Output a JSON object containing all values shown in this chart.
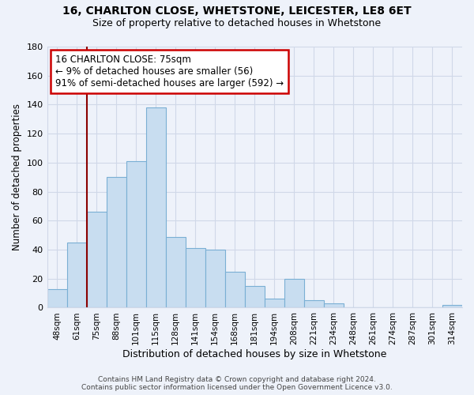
{
  "title1": "16, CHARLTON CLOSE, WHETSTONE, LEICESTER, LE8 6ET",
  "title2": "Size of property relative to detached houses in Whetstone",
  "xlabel": "Distribution of detached houses by size in Whetstone",
  "ylabel": "Number of detached properties",
  "bar_labels": [
    "48sqm",
    "61sqm",
    "75sqm",
    "88sqm",
    "101sqm",
    "115sqm",
    "128sqm",
    "141sqm",
    "154sqm",
    "168sqm",
    "181sqm",
    "194sqm",
    "208sqm",
    "221sqm",
    "234sqm",
    "248sqm",
    "261sqm",
    "274sqm",
    "287sqm",
    "301sqm",
    "314sqm"
  ],
  "bar_values": [
    13,
    45,
    66,
    90,
    101,
    138,
    49,
    41,
    40,
    25,
    15,
    6,
    20,
    5,
    3,
    0,
    0,
    0,
    0,
    0,
    2
  ],
  "bar_color": "#c8ddf0",
  "bar_edge_color": "#7aafd4",
  "ylim": [
    0,
    180
  ],
  "yticks": [
    0,
    20,
    40,
    60,
    80,
    100,
    120,
    140,
    160,
    180
  ],
  "vline_x_index": 2,
  "vline_color": "#8b0000",
  "annotation_title": "16 CHARLTON CLOSE: 75sqm",
  "annotation_line1": "← 9% of detached houses are smaller (56)",
  "annotation_line2": "91% of semi-detached houses are larger (592) →",
  "annotation_box_color": "#ffffff",
  "annotation_box_edge_color": "#cc0000",
  "footer1": "Contains HM Land Registry data © Crown copyright and database right 2024.",
  "footer2": "Contains public sector information licensed under the Open Government Licence v3.0.",
  "background_color": "#eef2fa",
  "grid_color": "#d0d8e8"
}
